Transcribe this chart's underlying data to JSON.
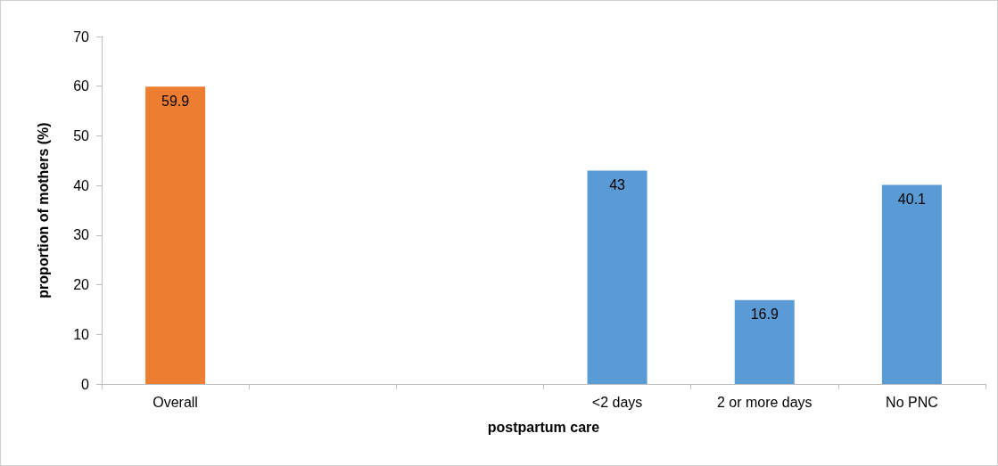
{
  "chart_data": {
    "type": "bar",
    "xlabel": "postpartum care",
    "ylabel": "proportion of mothers (%)",
    "categories": [
      "Overall",
      null,
      null,
      "<2 days",
      "2 or more days",
      "No PNC"
    ],
    "values": [
      59.9,
      null,
      null,
      43,
      16.9,
      40.1
    ],
    "colors": [
      "#ed7d31",
      "#5b9bd5",
      "#5b9bd5",
      "#5b9bd5",
      "#5b9bd5",
      "#5b9bd5"
    ],
    "ylim": [
      0,
      70
    ],
    "yticks": [
      0,
      10,
      20,
      30,
      40,
      50,
      60,
      70
    ],
    "grid": false,
    "data_labels": true
  }
}
